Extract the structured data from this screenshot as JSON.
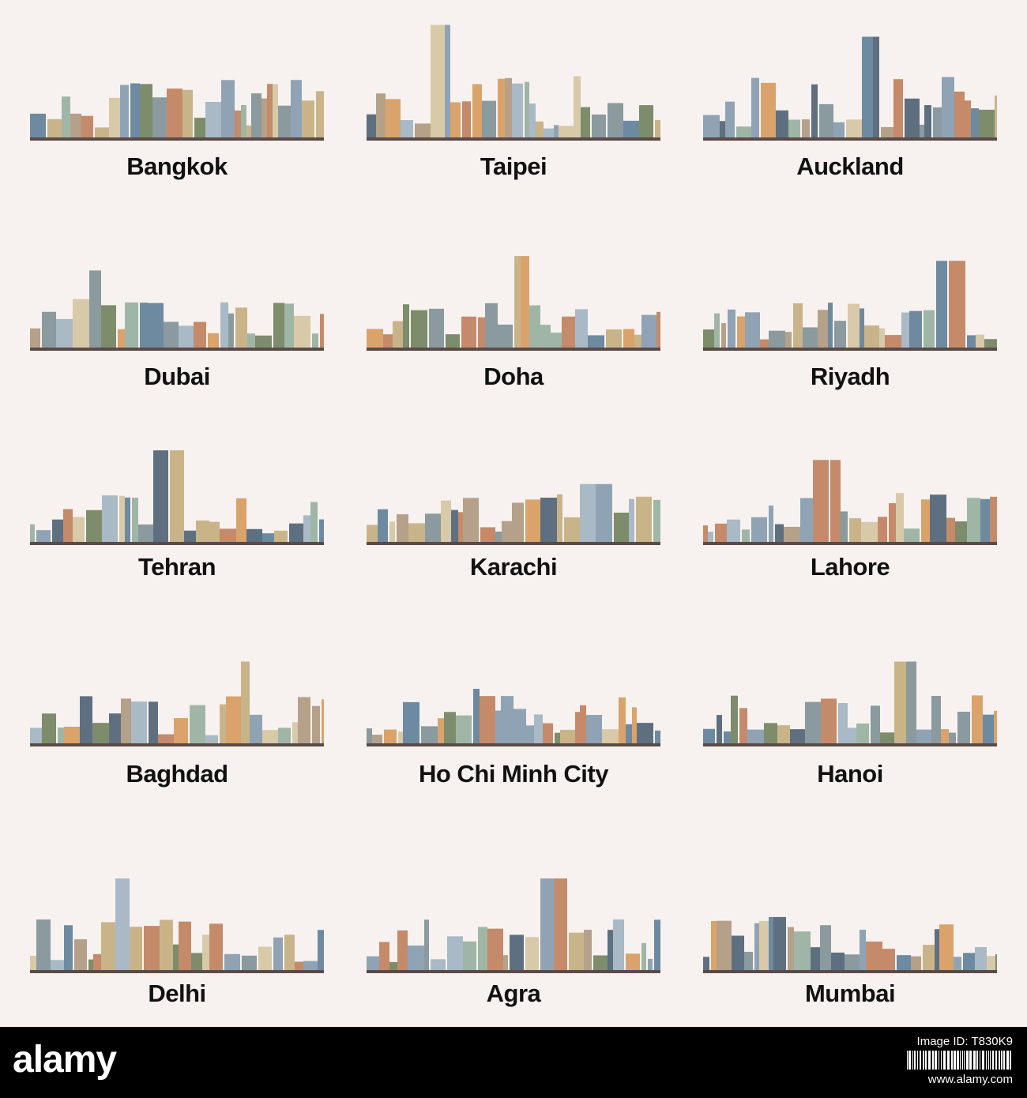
{
  "cities": [
    {
      "name": "Bangkok"
    },
    {
      "name": "Taipei"
    },
    {
      "name": "Auckland"
    },
    {
      "name": "Dubai"
    },
    {
      "name": "Doha"
    },
    {
      "name": "Riyadh"
    },
    {
      "name": "Tehran"
    },
    {
      "name": "Karachi"
    },
    {
      "name": "Lahore"
    },
    {
      "name": "Baghdad"
    },
    {
      "name": "Ho Chi Minh City"
    },
    {
      "name": "Hanoi"
    },
    {
      "name": "Delhi"
    },
    {
      "name": "Agra"
    },
    {
      "name": "Mumbai"
    }
  ],
  "footer": {
    "brand": "alamy",
    "image_id": "Image ID: T830K9",
    "url": "www.alamy.com"
  },
  "colors": {
    "background": "#f7f2ef",
    "footer": "#000000",
    "label": "#111111",
    "building_palette": [
      "#8fa3b5",
      "#6d8aa0",
      "#a9b9c6",
      "#c9b48a",
      "#7d8c6a",
      "#b5a089",
      "#5e6f80",
      "#d8c9a8",
      "#8a9a9e",
      "#c48a6a",
      "#9fb6a6",
      "#d9a36b"
    ]
  }
}
